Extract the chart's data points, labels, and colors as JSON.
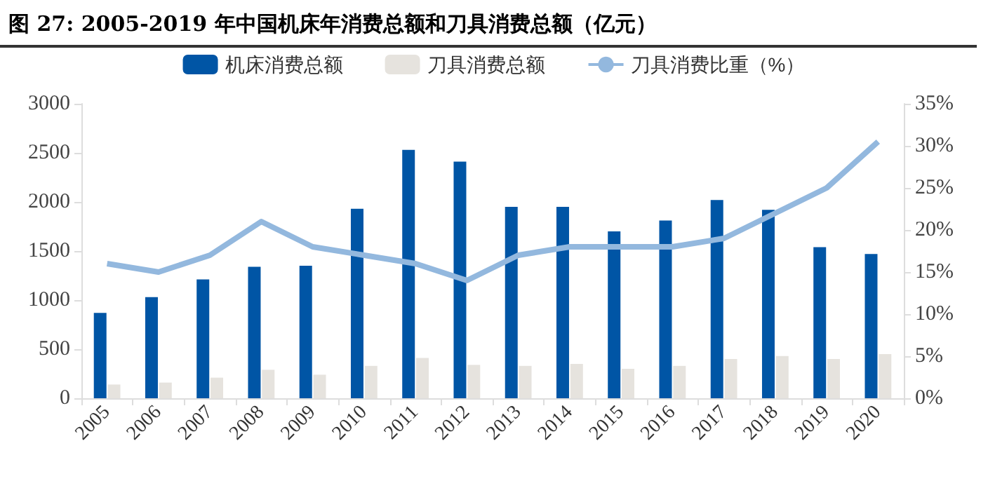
{
  "chart_data": {
    "type": "bar",
    "title": "图  27:  2005-2019 年中国机床年消费总额和刀具消费总额（亿元）",
    "categories": [
      "2005",
      "2006",
      "2007",
      "2008",
      "2009",
      "2010",
      "2011",
      "2012",
      "2013",
      "2014",
      "2015",
      "2016",
      "2017",
      "2018",
      "2019",
      "2020"
    ],
    "series": [
      {
        "name": "机床消费总额",
        "color": "#0055a5",
        "values": [
          870,
          1030,
          1210,
          1340,
          1350,
          1930,
          2530,
          2410,
          1950,
          1950,
          1700,
          1810,
          2020,
          1920,
          1540,
          1470
        ]
      },
      {
        "name": "刀具消费总额",
        "color": "#e6e3de",
        "values": [
          140,
          160,
          210,
          290,
          240,
          330,
          410,
          340,
          330,
          350,
          300,
          330,
          400,
          430,
          400,
          450
        ]
      },
      {
        "name": "刀具消费比重（%）",
        "type": "line",
        "axis": "y2",
        "color": "#93b8de",
        "values": [
          16,
          15,
          17,
          21,
          18,
          17,
          16,
          14,
          17,
          18,
          18,
          18,
          19,
          22,
          25,
          30.5
        ]
      }
    ],
    "ylim": [
      0,
      3000
    ],
    "yticks": [
      0,
      500,
      1000,
      1500,
      2000,
      2500,
      3000
    ],
    "y2lim": [
      0,
      35
    ],
    "y2ticks": [
      {
        "value": 0,
        "label": "0%"
      },
      {
        "value": 5,
        "label": "5%"
      },
      {
        "value": 10,
        "label": "10%"
      },
      {
        "value": 15,
        "label": "15%"
      },
      {
        "value": 20,
        "label": "20%"
      },
      {
        "value": 25,
        "label": "25%"
      },
      {
        "value": 30,
        "label": "30%"
      },
      {
        "value": 35,
        "label": "35%"
      }
    ],
    "legend": "top",
    "grid": false,
    "marker": "none"
  }
}
